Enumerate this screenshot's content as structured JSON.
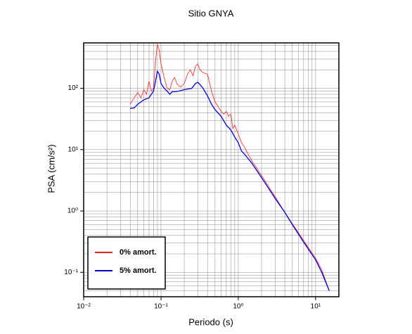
{
  "chart_data": {
    "type": "line",
    "title": "Sitio GNYA",
    "x_label": "Periodo (s)",
    "y_label": "PSA (cm/s²)",
    "log_x": true,
    "log_y": true,
    "grid": true,
    "minor_grid": true,
    "legend": "lower left",
    "xlim": [
      0.01,
      20
    ],
    "ylim": [
      0.04,
      550
    ],
    "xticks": [
      {
        "value": 0.01,
        "label": "10⁻²"
      },
      {
        "value": 0.1,
        "label": "10⁻¹"
      },
      {
        "value": 1,
        "label": "10⁰"
      },
      {
        "value": 10,
        "label": "10¹"
      }
    ],
    "yticks": [
      {
        "value": 0.1,
        "label": "10⁻¹"
      },
      {
        "value": 1,
        "label": "10⁰"
      },
      {
        "value": 10,
        "label": "10¹"
      },
      {
        "value": 100,
        "label": "10²"
      }
    ],
    "series": [
      {
        "name": "0% amort.",
        "color": "#ff2020",
        "x": [
          0.04,
          0.045,
          0.05,
          0.055,
          0.06,
          0.065,
          0.07,
          0.075,
          0.08,
          0.085,
          0.09,
          0.095,
          0.1,
          0.11,
          0.12,
          0.13,
          0.14,
          0.15,
          0.16,
          0.17,
          0.18,
          0.2,
          0.22,
          0.24,
          0.26,
          0.28,
          0.3,
          0.32,
          0.35,
          0.4,
          0.45,
          0.5,
          0.55,
          0.6,
          0.65,
          0.7,
          0.75,
          0.8,
          0.85,
          0.9,
          1.0,
          1.1,
          1.2,
          1.5,
          2,
          3,
          4,
          5,
          7,
          10,
          12,
          15
        ],
        "values": [
          55,
          70,
          85,
          70,
          95,
          80,
          130,
          90,
          100,
          280,
          520,
          420,
          250,
          150,
          100,
          95,
          130,
          150,
          120,
          110,
          105,
          120,
          170,
          200,
          160,
          230,
          250,
          200,
          180,
          170,
          90,
          60,
          50,
          42,
          38,
          42,
          35,
          38,
          22,
          25,
          18,
          13,
          11,
          6.5,
          3.8,
          1.7,
          0.95,
          0.62,
          0.33,
          0.17,
          0.11,
          0.05
        ]
      },
      {
        "name": "5% amort.",
        "color": "#0000ee",
        "x": [
          0.04,
          0.045,
          0.05,
          0.06,
          0.07,
          0.08,
          0.085,
          0.09,
          0.095,
          0.1,
          0.11,
          0.12,
          0.13,
          0.14,
          0.15,
          0.17,
          0.2,
          0.25,
          0.28,
          0.3,
          0.32,
          0.35,
          0.4,
          0.45,
          0.5,
          0.6,
          0.7,
          0.8,
          0.9,
          1.0,
          1.1,
          1.2,
          1.5,
          2,
          3,
          4,
          5,
          7,
          10,
          12,
          15
        ],
        "values": [
          47,
          48,
          55,
          65,
          70,
          90,
          130,
          190,
          170,
          120,
          100,
          90,
          80,
          88,
          88,
          90,
          95,
          100,
          120,
          125,
          115,
          100,
          75,
          55,
          45,
          35,
          25,
          21,
          16,
          13,
          9.5,
          8.5,
          6,
          3.5,
          1.6,
          0.95,
          0.6,
          0.31,
          0.16,
          0.1,
          0.05
        ]
      }
    ]
  }
}
